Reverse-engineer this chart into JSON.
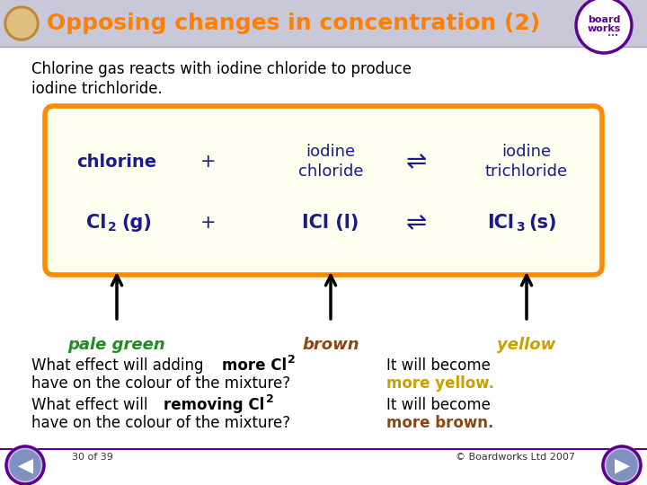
{
  "title": "Opposing changes in concentration (2)",
  "title_color": "#FF8000",
  "background_color": "#FFFFFF",
  "header_bg_top": "#B0B0C0",
  "header_bg_bottom": "#D8D8E8",
  "subtitle_line1": "Chlorine gas reacts with iodine chloride to produce",
  "subtitle_line2": "iodine trichloride.",
  "box_bg": "#FFFFF0",
  "box_border": "#FF8C00",
  "dark_blue": "#1a1a8e",
  "arrow_labels": [
    "pale green",
    "brown",
    "yellow"
  ],
  "arrow_colors": [
    "#228B22",
    "#8B4513",
    "#C8A000"
  ],
  "q1_answer_color": "#C8A000",
  "q2_answer_color": "#8B4513",
  "footer_left": "30 of 39",
  "footer_right": "© Boardworks Ltd 2007",
  "nav_color": "#5B0090",
  "nav_fill": "#8080C0",
  "footer_line_color": "#5B0090"
}
